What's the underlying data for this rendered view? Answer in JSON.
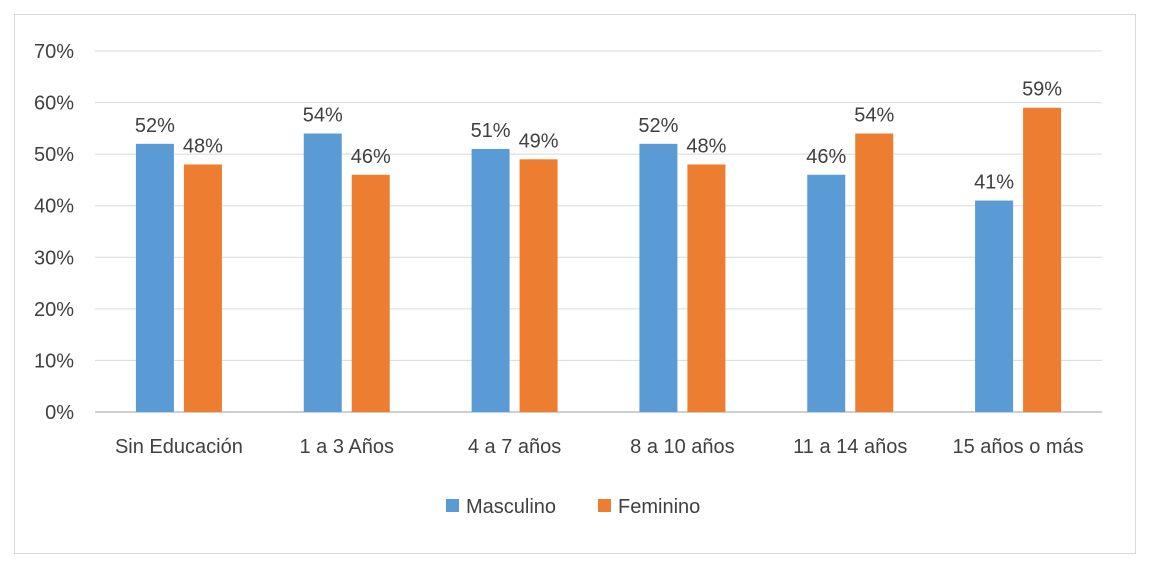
{
  "chart_data": {
    "type": "bar",
    "categories": [
      "Sin Educación",
      "1 a 3 Años",
      "4 a 7 años",
      "8 a 10 años",
      "11 a 14 años",
      "15 años o más"
    ],
    "series": [
      {
        "name": "Masculino",
        "values": [
          52,
          54,
          51,
          52,
          46,
          41
        ],
        "labels": [
          "52%",
          "54%",
          "51%",
          "52%",
          "46%",
          "41%"
        ],
        "color": "#5b9bd5"
      },
      {
        "name": "Feminino",
        "values": [
          48,
          46,
          49,
          48,
          54,
          59
        ],
        "labels": [
          "48%",
          "46%",
          "49%",
          "48%",
          "54%",
          "59%"
        ],
        "color": "#ed7d31"
      }
    ],
    "y_ticks": [
      "0%",
      "10%",
      "20%",
      "30%",
      "40%",
      "50%",
      "60%",
      "70%"
    ],
    "ylim": [
      0,
      70
    ],
    "grid": true,
    "legend_position": "bottom"
  }
}
